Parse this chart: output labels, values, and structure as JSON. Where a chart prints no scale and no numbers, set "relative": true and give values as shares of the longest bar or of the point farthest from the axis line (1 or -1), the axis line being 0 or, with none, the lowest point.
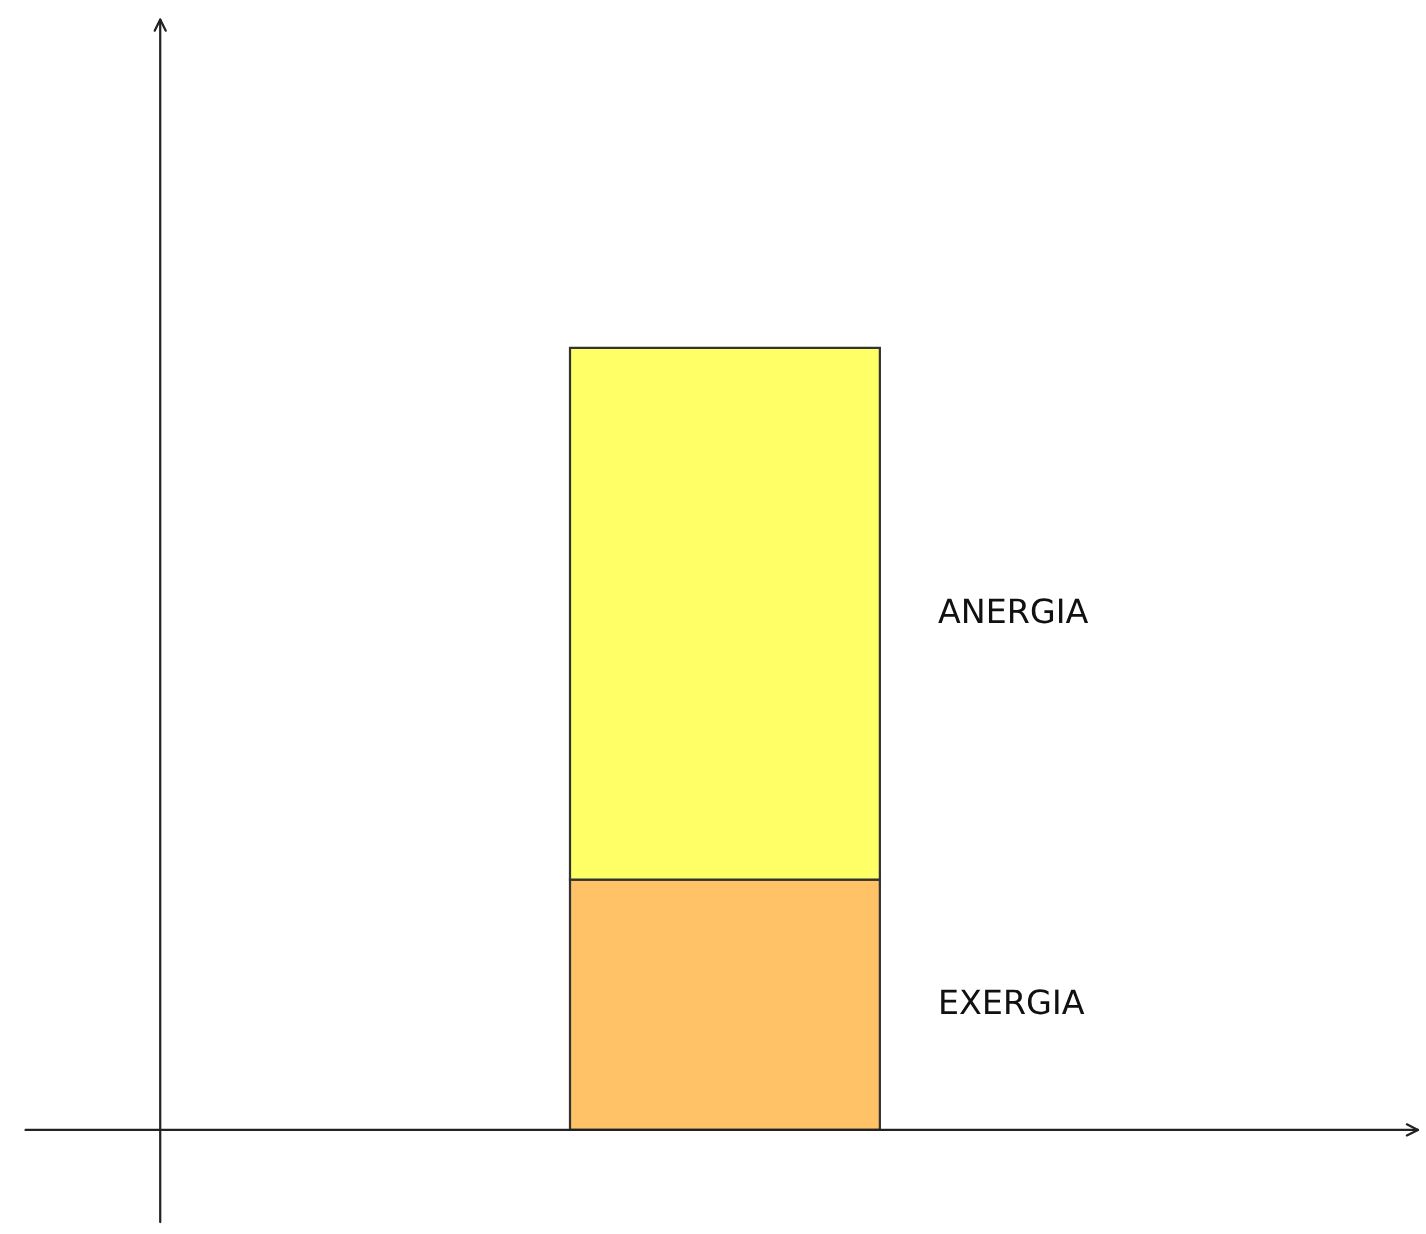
{
  "chart_data": {
    "type": "bar",
    "stacked": true,
    "relative": true,
    "categories": [
      null
    ],
    "series": [
      {
        "name": "EXERGIA",
        "color": "#ffc266",
        "values": [
          0.32
        ]
      },
      {
        "name": "ANERGIA",
        "color": "#ffff66",
        "values": [
          0.68
        ]
      }
    ]
  }
}
